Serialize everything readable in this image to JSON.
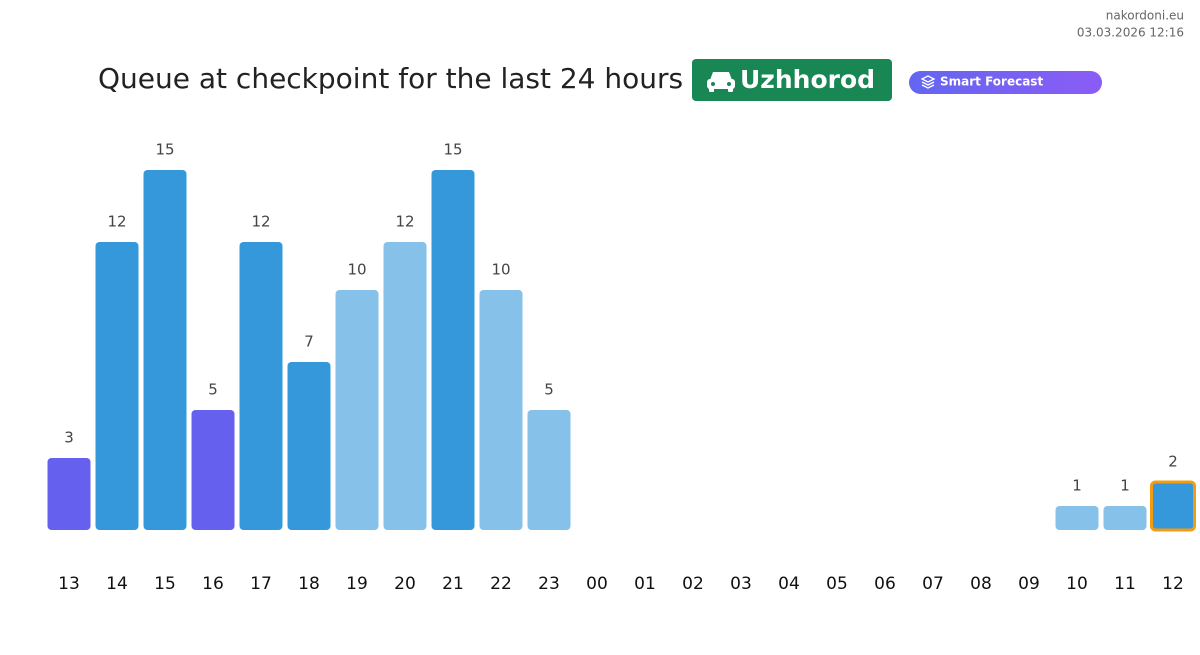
{
  "site": "nakordoni.eu",
  "timestamp": "03.03.2026 12:16",
  "chart_data": {
    "type": "bar",
    "title": "Queue at checkpoint for the last 24 hours",
    "checkpoint": "Uzhhorod",
    "button": "Smart Forecast",
    "categories": [
      "13",
      "14",
      "15",
      "16",
      "17",
      "18",
      "19",
      "20",
      "21",
      "22",
      "23",
      "00",
      "01",
      "02",
      "03",
      "04",
      "05",
      "06",
      "07",
      "08",
      "09",
      "10",
      "11",
      "12"
    ],
    "values": [
      3,
      12,
      15,
      5,
      12,
      7,
      10,
      12,
      15,
      10,
      5,
      null,
      null,
      null,
      null,
      null,
      null,
      null,
      null,
      null,
      null,
      1,
      1,
      2
    ],
    "colors": [
      "#6560ee",
      "#3598db",
      "#3598db",
      "#6560ee",
      "#3598db",
      "#3598db",
      "#85c1e9",
      "#85c1e9",
      "#3598db",
      "#85c1e9",
      "#85c1e9",
      null,
      null,
      null,
      null,
      null,
      null,
      null,
      null,
      null,
      null,
      "#85c1e9",
      "#85c1e9",
      "#3598db"
    ],
    "highlight": {
      "index": 23,
      "color": "#f39c12"
    }
  }
}
